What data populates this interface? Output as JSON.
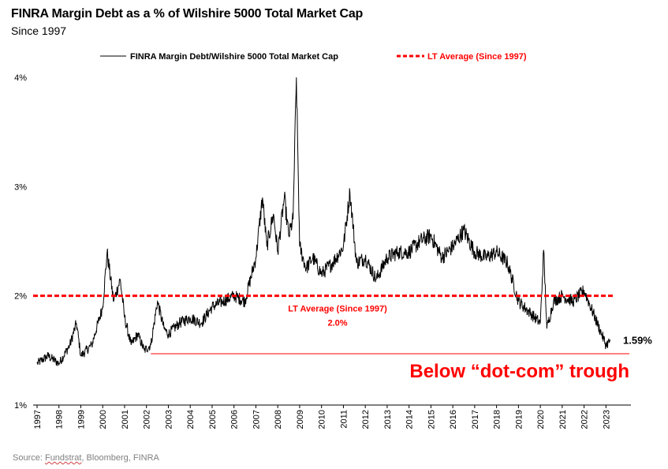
{
  "header": {
    "title": "FINRA Margin Debt as a % of Wilshire 5000 Total Market Cap",
    "subtitle": "Since 1997"
  },
  "source": {
    "prefix": "Source: ",
    "underlined": "Fundstrat",
    "suffix": ", Bloomberg, FINRA"
  },
  "chart_data": {
    "type": "line",
    "series": [
      {
        "name": "FINRA Margin Debt/Wilshire 5000 Total Market Cap",
        "color": "#000000",
        "x": [
          1997.0,
          1997.5,
          1998.0,
          1998.5,
          1998.8,
          1999.0,
          1999.5,
          2000.0,
          2000.2,
          2000.5,
          2000.8,
          2001.0,
          2001.3,
          2001.6,
          2001.9,
          2002.2,
          2002.5,
          2002.8,
          2003.0,
          2003.5,
          2004.0,
          2004.5,
          2005.0,
          2005.5,
          2006.0,
          2006.5,
          2007.0,
          2007.3,
          2007.5,
          2007.8,
          2008.0,
          2008.3,
          2008.5,
          2008.7,
          2008.85,
          2009.0,
          2009.3,
          2009.6,
          2010.0,
          2010.5,
          2011.0,
          2011.3,
          2011.6,
          2012.0,
          2012.5,
          2013.0,
          2013.5,
          2014.0,
          2014.5,
          2015.0,
          2015.5,
          2016.0,
          2016.5,
          2017.0,
          2017.5,
          2018.0,
          2018.5,
          2019.0,
          2019.5,
          2020.0,
          2020.15,
          2020.3,
          2020.6,
          2021.0,
          2021.5,
          2022.0,
          2022.5,
          2022.8,
          2023.0,
          2023.2
        ],
        "values": [
          1.38,
          1.45,
          1.38,
          1.55,
          1.75,
          1.45,
          1.55,
          1.9,
          2.4,
          1.95,
          2.15,
          1.8,
          1.55,
          1.65,
          1.5,
          1.55,
          1.95,
          1.7,
          1.65,
          1.75,
          1.8,
          1.75,
          1.9,
          1.95,
          2.0,
          1.95,
          2.35,
          2.9,
          2.45,
          2.75,
          2.4,
          2.9,
          2.55,
          2.7,
          4.0,
          2.45,
          2.25,
          2.35,
          2.2,
          2.3,
          2.45,
          2.95,
          2.3,
          2.35,
          2.15,
          2.35,
          2.4,
          2.4,
          2.5,
          2.55,
          2.35,
          2.45,
          2.6,
          2.4,
          2.35,
          2.4,
          2.3,
          1.95,
          1.85,
          1.75,
          2.42,
          1.7,
          1.95,
          2.0,
          1.95,
          2.05,
          1.8,
          1.65,
          1.55,
          1.59
        ]
      },
      {
        "name": "LT Average (Since 1997)",
        "color": "#ff0000",
        "style": "dashed",
        "x": [
          1997.0,
          2023.3
        ],
        "values": [
          2.0,
          2.0
        ]
      }
    ],
    "xlabel": "",
    "ylabel": "",
    "xlim": [
      1997,
      2023.6
    ],
    "ylim": [
      1,
      4
    ],
    "xticks": [
      "1997",
      "1998",
      "1999",
      "2000",
      "2001",
      "2002",
      "2003",
      "2004",
      "2005",
      "2006",
      "2007",
      "2008",
      "2009",
      "2010",
      "2011",
      "2012",
      "2013",
      "2014",
      "2015",
      "2016",
      "2017",
      "2018",
      "2019",
      "2020",
      "2021",
      "2022",
      "2023"
    ],
    "yticks": [
      "1%",
      "2%",
      "3%",
      "4%"
    ],
    "grid": false,
    "legend_position": "top",
    "annotations": {
      "avg_label": "LT Average (Since 1997)",
      "avg_value": "2.0%",
      "last_value": "1.59%",
      "trough_label": "Below “dot-com” trough",
      "trough_level": 1.47,
      "trough_from": 2002.2
    }
  }
}
